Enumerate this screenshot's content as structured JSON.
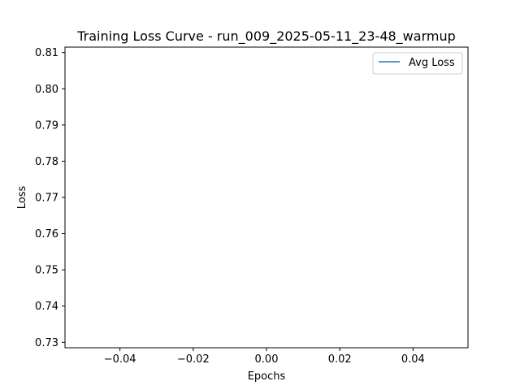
{
  "chart_data": {
    "type": "line",
    "title": "Training Loss Curve - run_009_2025-05-11_23-48_warmup",
    "xlabel": "Epochs",
    "ylabel": "Loss",
    "xlim": [
      -0.055,
      0.055
    ],
    "ylim": [
      0.7285,
      0.8115
    ],
    "x_ticks": [
      -0.04,
      -0.02,
      0.0,
      0.02,
      0.04
    ],
    "x_tick_labels": [
      "−0.04",
      "−0.02",
      "0.00",
      "0.02",
      "0.04"
    ],
    "y_ticks": [
      0.73,
      0.74,
      0.75,
      0.76,
      0.77,
      0.78,
      0.79,
      0.8,
      0.81
    ],
    "y_tick_labels": [
      "0.73",
      "0.74",
      "0.75",
      "0.76",
      "0.77",
      "0.78",
      "0.79",
      "0.80",
      "0.81"
    ],
    "grid": false,
    "legend_position": "top-right",
    "series": [
      {
        "name": "Avg Loss",
        "color": "#1f77b4",
        "x": [],
        "y": []
      }
    ]
  }
}
